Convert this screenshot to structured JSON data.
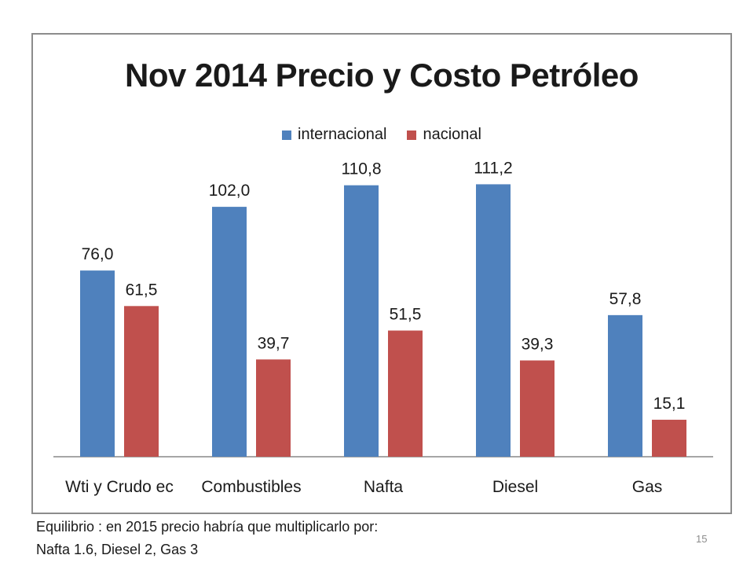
{
  "slide": {
    "footnote_line1": "Equilibrio : en 2015 precio habría que multiplicarlo por:",
    "footnote_line2": "Nafta 1.6, Diesel 2, Gas 3",
    "page_number": "15"
  },
  "chart_data": {
    "type": "bar",
    "title": "Nov 2014 Precio y Costo Petróleo",
    "categories": [
      "Wti y Crudo ec",
      "Combustibles",
      "Nafta",
      "Diesel",
      "Gas"
    ],
    "series": [
      {
        "name": "internacional",
        "color": "#4f81bd",
        "values": [
          76.0,
          102.0,
          110.8,
          111.2,
          57.8
        ],
        "labels": [
          "76,0",
          "102,0",
          "110,8",
          "111,2",
          "57,8"
        ]
      },
      {
        "name": "nacional",
        "color": "#c0504d",
        "values": [
          61.5,
          39.7,
          51.5,
          39.3,
          15.1
        ],
        "labels": [
          "61,5",
          "39,7",
          "51,5",
          "39,3",
          "15,1"
        ]
      }
    ],
    "xlabel": "",
    "ylabel": "",
    "ylim": [
      0,
      120
    ],
    "grid": false,
    "legend": "top-center"
  }
}
